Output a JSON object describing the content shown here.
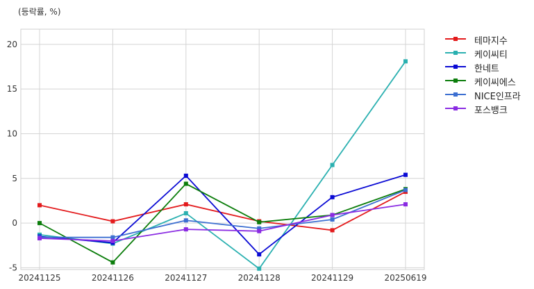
{
  "unit_label": "(등락률, %)",
  "chart_data": {
    "type": "line",
    "title": "",
    "xlabel": "",
    "ylabel": "(등락률, %)",
    "categories": [
      "20241125",
      "20241126",
      "20241127",
      "20241128",
      "20241129",
      "20250619"
    ],
    "ylim": [
      -5.2,
      21.7
    ],
    "yticks": [
      -5,
      0,
      5,
      10,
      15,
      20
    ],
    "grid": true,
    "legend_position": "outside-right",
    "series": [
      {
        "name": "테마지수",
        "color": "#e31a1c",
        "values": [
          2.0,
          0.2,
          2.1,
          0.2,
          -0.8,
          3.5
        ]
      },
      {
        "name": "케이씨티",
        "color": "#2ab0b0",
        "values": [
          -1.3,
          -2.3,
          1.1,
          -5.1,
          6.5,
          18.1
        ]
      },
      {
        "name": "한네트",
        "color": "#0a0ad4",
        "values": [
          -1.5,
          -2.2,
          5.3,
          -3.5,
          2.9,
          5.4
        ]
      },
      {
        "name": "케이씨에스",
        "color": "#0b7d0b",
        "values": [
          0.0,
          -4.4,
          4.4,
          0.1,
          0.9,
          3.8
        ]
      },
      {
        "name": "NICE인프라",
        "color": "#3c6fd1",
        "values": [
          -1.6,
          -1.6,
          0.3,
          -0.6,
          0.4,
          3.7
        ]
      },
      {
        "name": "포스뱅크",
        "color": "#8a2be2",
        "values": [
          -1.7,
          -2.0,
          -0.7,
          -0.9,
          0.9,
          2.1
        ]
      }
    ]
  }
}
